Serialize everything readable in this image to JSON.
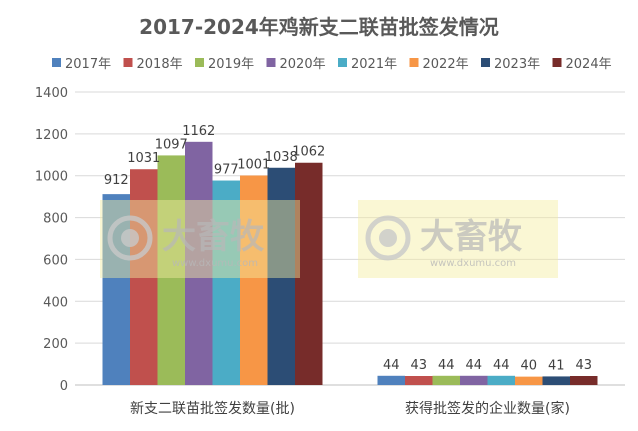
{
  "chart_data": {
    "type": "bar",
    "title": "2017-2024年鸡新支二联苗批签发情况",
    "categories": [
      "新支二联苗批签发数量(批)",
      "获得批签发的企业数量(家)"
    ],
    "series": [
      {
        "name": "2017年",
        "color": "#4F81BD",
        "values": [
          912,
          44
        ]
      },
      {
        "name": "2018年",
        "color": "#C0504D",
        "values": [
          1031,
          43
        ]
      },
      {
        "name": "2019年",
        "color": "#9BBB59",
        "values": [
          1097,
          44
        ]
      },
      {
        "name": "2020年",
        "color": "#8064A2",
        "values": [
          1162,
          44
        ]
      },
      {
        "name": "2021年",
        "color": "#4BACC6",
        "values": [
          977,
          44
        ]
      },
      {
        "name": "2022年",
        "color": "#F79646",
        "values": [
          1001,
          40
        ]
      },
      {
        "name": "2023年",
        "color": "#2C4D75",
        "values": [
          1038,
          41
        ]
      },
      {
        "name": "2024年",
        "color": "#772C2A",
        "values": [
          1062,
          43
        ]
      }
    ],
    "yticks": [
      "0",
      "200",
      "400",
      "600",
      "800",
      "1000",
      "1200",
      "1400"
    ],
    "ylim": [
      0,
      1400
    ],
    "grid": true,
    "legend": "top",
    "xlabel": "",
    "ylabel": ""
  },
  "watermark": {
    "brand": "大畜牧",
    "url": "www.dxumu.com"
  }
}
